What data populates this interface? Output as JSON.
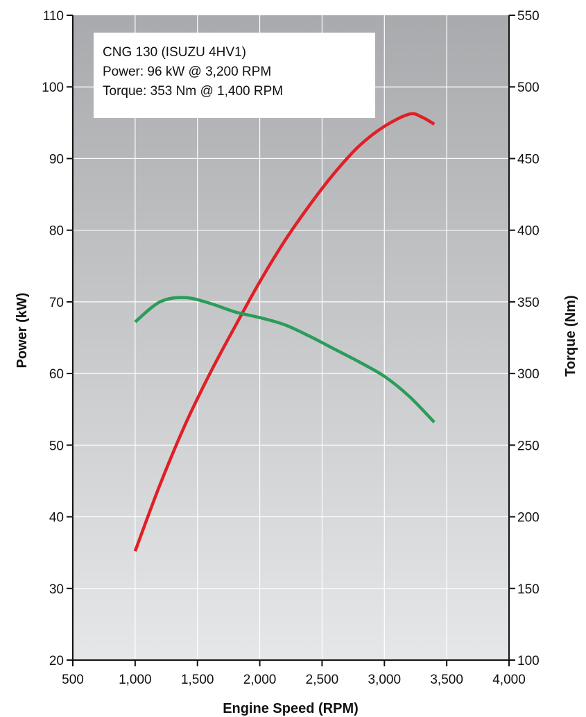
{
  "chart_data": {
    "type": "line",
    "xlabel": "Engine Speed (RPM)",
    "ylabel_left": "Power (kW)",
    "ylabel_right": "Torque (Nm)",
    "xlim": [
      500,
      4000
    ],
    "ylim_left": [
      20,
      110
    ],
    "ylim_right": [
      100,
      550
    ],
    "x_ticks": [
      500,
      1000,
      1500,
      2000,
      2500,
      3000,
      3500,
      4000
    ],
    "x_tick_labels": [
      "500",
      "1,000",
      "1,500",
      "2,000",
      "2,500",
      "3,000",
      "3,500",
      "4,000"
    ],
    "y_left_ticks": [
      20,
      30,
      40,
      50,
      60,
      70,
      80,
      90,
      100,
      110
    ],
    "y_left_tick_labels": [
      "20",
      "30",
      "40",
      "50",
      "60",
      "70",
      "80",
      "90",
      "100",
      "110"
    ],
    "y_right_ticks": [
      100,
      150,
      200,
      250,
      300,
      350,
      400,
      450,
      500,
      550
    ],
    "y_right_tick_labels": [
      "100",
      "150",
      "200",
      "250",
      "300",
      "350",
      "400",
      "450",
      "500",
      "550"
    ],
    "grid": true,
    "annotation": {
      "lines": [
        "CNG 130 (ISUZU 4HV1)",
        "Power: 96 kW @ 3,200 RPM",
        "Torque: 353 Nm @ 1,400 RPM"
      ],
      "placement": "top-left"
    },
    "series": [
      {
        "axis": "left",
        "color": "#e01f26",
        "x": [
          1000,
          1200,
          1400,
          1600,
          1800,
          2000,
          2200,
          2400,
          2600,
          2800,
          3000,
          3200,
          3300,
          3400
        ],
        "y": [
          35.2,
          44.5,
          52.8,
          60.0,
          66.5,
          72.8,
          78.5,
          83.5,
          88.0,
          91.8,
          94.5,
          96.2,
          95.8,
          94.8
        ]
      },
      {
        "axis": "right",
        "color": "#2b9c5a",
        "x": [
          1000,
          1200,
          1400,
          1600,
          1800,
          2000,
          2200,
          2400,
          2600,
          2800,
          3000,
          3200,
          3400
        ],
        "y": [
          336,
          350,
          353,
          349,
          343,
          339,
          334,
          326,
          317,
          308,
          298,
          284,
          266
        ]
      }
    ]
  }
}
